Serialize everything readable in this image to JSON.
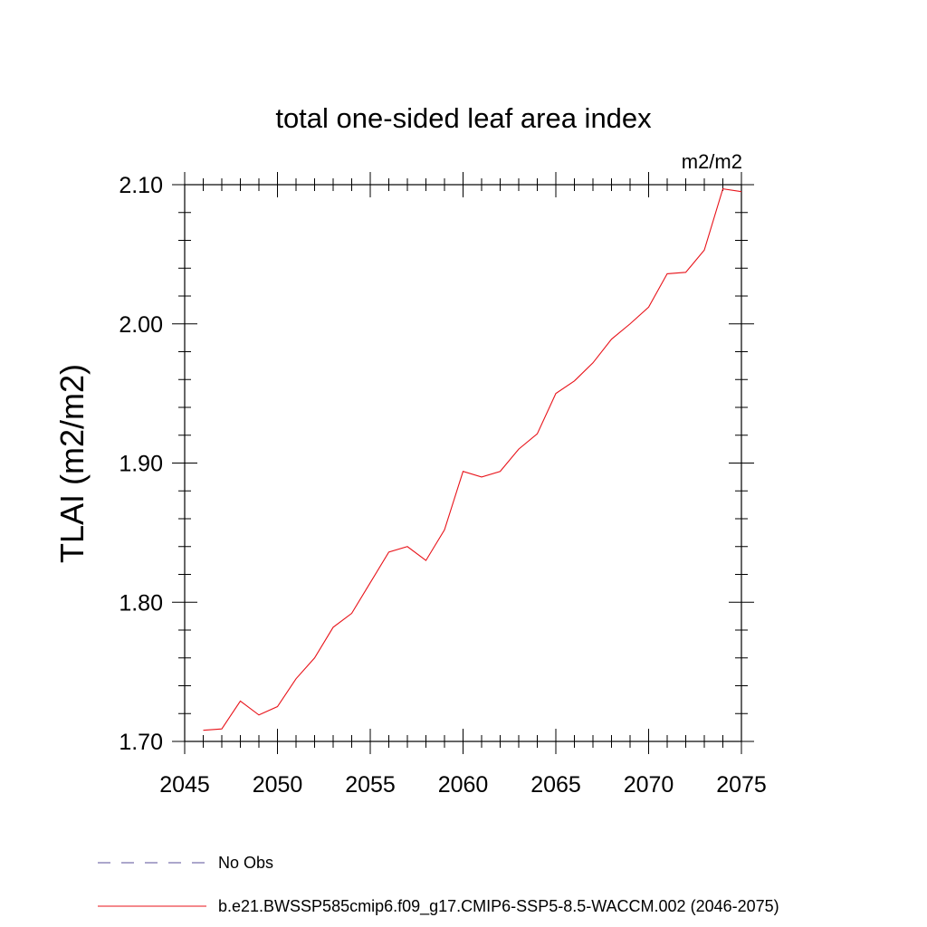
{
  "chart_data": {
    "type": "line",
    "title": "total one-sided leaf area index",
    "units_label": "m2/m2",
    "ylabel": "TLAI  (m2/m2)",
    "xlabel": "",
    "xlim": [
      2045,
      2075
    ],
    "ylim": [
      1.7,
      2.1
    ],
    "x_ticks": [
      2045,
      2050,
      2055,
      2060,
      2065,
      2070,
      2075
    ],
    "x_tick_labels": [
      "2045",
      "2050",
      "2055",
      "2060",
      "2065",
      "2070",
      "2075"
    ],
    "y_ticks": [
      1.7,
      1.8,
      1.9,
      2.0,
      2.1
    ],
    "y_tick_labels": [
      "1.70",
      "1.80",
      "1.90",
      "2.00",
      "2.10"
    ],
    "grid": false,
    "legend": [
      {
        "name": "No Obs",
        "color": "#5a4f9a",
        "style": "dashed"
      },
      {
        "name": "b.e21.BWSSP585cmip6.f09_g17.CMIP6-SSP5-8.5-WACCM.002 (2046-2075)",
        "color": "#e8131a",
        "style": "solid"
      }
    ],
    "series": [
      {
        "name": "b.e21.BWSSP585cmip6.f09_g17.CMIP6-SSP5-8.5-WACCM.002 (2046-2075)",
        "color": "#e8131a",
        "x": [
          2046,
          2047,
          2048,
          2049,
          2050,
          2051,
          2052,
          2053,
          2054,
          2055,
          2056,
          2057,
          2058,
          2059,
          2060,
          2061,
          2062,
          2063,
          2064,
          2065,
          2066,
          2067,
          2068,
          2069,
          2070,
          2071,
          2072,
          2073,
          2074,
          2075
        ],
        "values": [
          1.708,
          1.709,
          1.729,
          1.719,
          1.725,
          1.745,
          1.76,
          1.782,
          1.792,
          1.814,
          1.836,
          1.84,
          1.83,
          1.852,
          1.894,
          1.89,
          1.894,
          1.91,
          1.921,
          1.95,
          1.959,
          1.972,
          1.989,
          2.0,
          2.012,
          2.036,
          2.037,
          2.053,
          2.097,
          2.095
        ]
      }
    ]
  }
}
